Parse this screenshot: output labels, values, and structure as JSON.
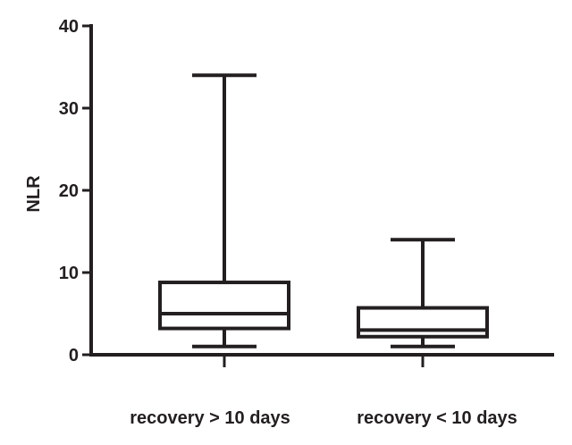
{
  "chart_data": {
    "type": "boxplot",
    "title": "",
    "xlabel": "",
    "ylabel": "NLR",
    "ylim": [
      0,
      40
    ],
    "yticks": [
      0,
      10,
      20,
      30,
      40
    ],
    "grid": false,
    "categories": [
      "recovery > 10 days",
      "recovery < 10 days"
    ],
    "series": [
      {
        "min": 1,
        "q1": 3.2,
        "median": 5,
        "q3": 8.8,
        "max": 34
      },
      {
        "min": 1,
        "q1": 2.2,
        "median": 3,
        "q3": 5.7,
        "max": 14
      }
    ],
    "colors": {
      "stroke": "#231f20",
      "background": "#ffffff"
    }
  }
}
